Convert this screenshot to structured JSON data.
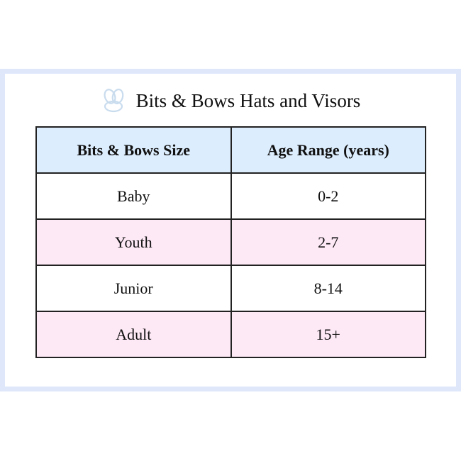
{
  "title": "Bits & Bows Hats and Visors",
  "logo_icon": "bow-logo-icon",
  "colors": {
    "frame": "#dfe8fb",
    "header": "#dcedfd",
    "alt_row": "#fde8f5"
  },
  "table": {
    "headers": [
      "Bits & Bows Size",
      "Age Range (years)"
    ],
    "rows": [
      [
        "Baby",
        "0-2"
      ],
      [
        "Youth",
        "2-7"
      ],
      [
        "Junior",
        "8-14"
      ],
      [
        "Adult",
        "15+"
      ]
    ]
  }
}
